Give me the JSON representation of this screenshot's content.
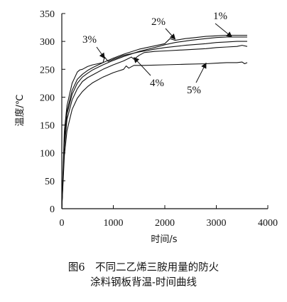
{
  "caption": {
    "line1": "图6　不同二乙烯三胺用量的防火",
    "line2": "涂料钢板背温-时间曲线"
  },
  "chart_data": {
    "type": "line",
    "xlabel": "时间/s",
    "ylabel": "温度/℃",
    "xlim": [
      0,
      4000
    ],
    "ylim": [
      0,
      350
    ],
    "xticks": [
      0,
      1000,
      2000,
      3000,
      4000
    ],
    "yticks": [
      0,
      50,
      100,
      150,
      200,
      250,
      300,
      350
    ],
    "grid": false,
    "legend": "none (direct labels with arrows)",
    "series": [
      {
        "name": "1%",
        "x": [
          0,
          50,
          100,
          200,
          300,
          400,
          500,
          600,
          800,
          1000,
          1200,
          1500,
          1800,
          2000,
          2200,
          2500,
          2800,
          3000,
          3200,
          3400,
          3600
        ],
        "y": [
          0,
          120,
          170,
          205,
          225,
          236,
          243,
          249,
          258,
          266,
          273,
          282,
          289,
          294,
          298,
          302,
          305,
          307,
          308,
          308,
          308
        ]
      },
      {
        "name": "2%",
        "x": [
          0,
          50,
          100,
          200,
          300,
          400,
          500,
          600,
          800,
          1000,
          1200,
          1500,
          1800,
          2000,
          2100,
          2200,
          2400,
          2600,
          2800,
          3000,
          3200,
          3400,
          3600
        ],
        "y": [
          0,
          125,
          175,
          212,
          232,
          241,
          248,
          253,
          262,
          270,
          277,
          286,
          292,
          296,
          305,
          302,
          305,
          307,
          309,
          310,
          311,
          311,
          311
        ]
      },
      {
        "name": "3%",
        "x": [
          0,
          50,
          100,
          200,
          300,
          350,
          400,
          500,
          600,
          700,
          800,
          830,
          900,
          1000,
          1200,
          1500,
          1800,
          2000,
          2400,
          2800,
          3000,
          3200,
          3400,
          3600
        ],
        "y": [
          0,
          140,
          185,
          225,
          245,
          249,
          250,
          255,
          258,
          260,
          262,
          272,
          264,
          268,
          275,
          281,
          286,
          289,
          293,
          296,
          298,
          299,
          300,
          300
        ]
      },
      {
        "name": "4%",
        "x": [
          0,
          50,
          100,
          200,
          300,
          400,
          500,
          600,
          800,
          1000,
          1200,
          1350,
          1400,
          1500,
          1600,
          1800,
          2000,
          2400,
          2800,
          3000,
          3200,
          3400,
          3500,
          3600
        ],
        "y": [
          0,
          110,
          160,
          195,
          215,
          228,
          235,
          240,
          250,
          258,
          265,
          272,
          268,
          275,
          280,
          282,
          283,
          285,
          287,
          289,
          290,
          291,
          293,
          291
        ]
      },
      {
        "name": "5%",
        "x": [
          0,
          50,
          100,
          200,
          300,
          400,
          500,
          600,
          800,
          1000,
          1100,
          1200,
          1250,
          1300,
          1400,
          1600,
          2000,
          2400,
          2800,
          3000,
          3200,
          3400,
          3500,
          3550,
          3600
        ],
        "y": [
          0,
          95,
          140,
          178,
          198,
          210,
          219,
          226,
          236,
          244,
          247,
          250,
          256,
          252,
          257,
          257,
          258,
          259,
          260,
          261,
          262,
          262,
          263,
          260,
          262
        ]
      }
    ],
    "annotations": [
      {
        "text": "1%",
        "target_x": 3300,
        "target_y": 308
      },
      {
        "text": "2%",
        "target_x": 2200,
        "target_y": 304
      },
      {
        "text": "3%",
        "target_x": 830,
        "target_y": 270
      },
      {
        "text": "4%",
        "target_x": 1400,
        "target_y": 271
      },
      {
        "text": "5%",
        "target_x": 2800,
        "target_y": 261
      }
    ]
  }
}
